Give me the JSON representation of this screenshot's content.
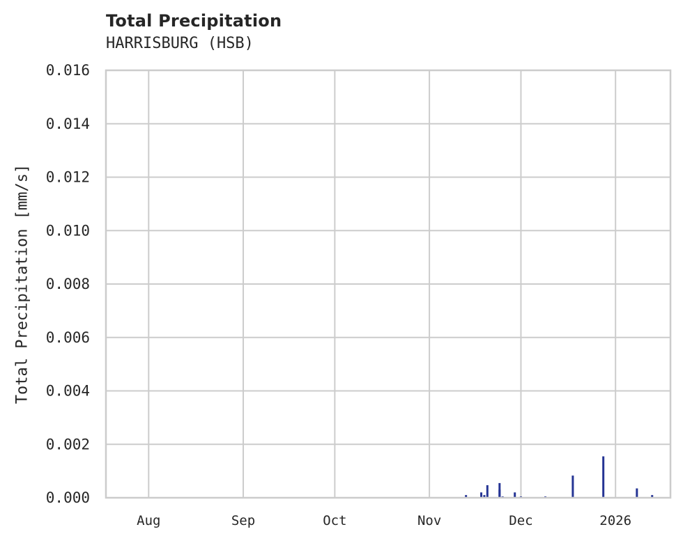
{
  "chart_data": {
    "type": "bar",
    "title": "Total Precipitation",
    "subtitle": "HARRISBURG (HSB)",
    "xlabel": "",
    "ylabel": "Total Precipitation [mm/s]",
    "ylim": [
      0.0,
      0.016
    ],
    "grid": true,
    "legend": null,
    "colors": {
      "bars": "#253494",
      "grid": "#cccccc",
      "axes": "#cccccc",
      "text": "#262626"
    },
    "yticks": [
      "0.000",
      "0.002",
      "0.004",
      "0.006",
      "0.008",
      "0.010",
      "0.012",
      "0.014",
      "0.016"
    ],
    "xticks": [
      "Aug",
      "Sep",
      "Oct",
      "Nov",
      "Dec",
      "2026"
    ],
    "x_range_approx": [
      "2025-07-18",
      "2026-01-19"
    ],
    "series": [
      {
        "name": "Total Precipitation",
        "points": [
          {
            "date": "2025-11-13",
            "value": 0.0001
          },
          {
            "date": "2025-11-18",
            "value": 0.0002
          },
          {
            "date": "2025-11-19",
            "value": 0.0001
          },
          {
            "date": "2025-11-20",
            "value": 0.00047
          },
          {
            "date": "2025-11-24",
            "value": 0.0003
          },
          {
            "date": "2025-11-24",
            "value": 0.00055
          },
          {
            "date": "2025-11-25",
            "value": 5e-05
          },
          {
            "date": "2025-11-29",
            "value": 0.0002
          },
          {
            "date": "2025-12-01",
            "value": 5e-05
          },
          {
            "date": "2025-12-09",
            "value": 5e-05
          },
          {
            "date": "2025-12-18",
            "value": 0.00083
          },
          {
            "date": "2025-12-28",
            "value": 0.00155
          },
          {
            "date": "2026-01-08",
            "value": 0.00035
          },
          {
            "date": "2026-01-13",
            "value": 0.0001
          }
        ]
      }
    ]
  }
}
